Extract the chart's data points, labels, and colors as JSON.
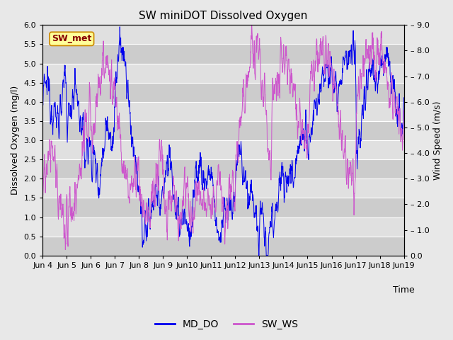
{
  "title": "SW miniDOT Dissolved Oxygen",
  "ylabel_left": "Dissolved Oxygen (mg/l)",
  "ylabel_right": "Wind Speed (m/s)",
  "xlabel": "Time",
  "ylim_left": [
    0.0,
    6.0
  ],
  "ylim_right": [
    0.0,
    9.0
  ],
  "yticks_left": [
    0.0,
    0.5,
    1.0,
    1.5,
    2.0,
    2.5,
    3.0,
    3.5,
    4.0,
    4.5,
    5.0,
    5.5,
    6.0
  ],
  "yticks_right": [
    0.0,
    1.0,
    2.0,
    3.0,
    4.0,
    5.0,
    6.0,
    7.0,
    8.0,
    9.0
  ],
  "line1_color": "#0000EE",
  "line2_color": "#CC55CC",
  "line1_label": "MD_DO",
  "line2_label": "SW_WS",
  "annotation_text": "SW_met",
  "annotation_bg": "#FFFF99",
  "annotation_border": "#CC8800",
  "annotation_fg": "#880000",
  "fig_bg": "#E8E8E8",
  "plot_bg": "#D8D8D8",
  "band_dark": "#CCCCCC",
  "band_light": "#E0E0E0",
  "title_fontsize": 11,
  "label_fontsize": 9,
  "tick_fontsize": 8,
  "legend_fontsize": 10,
  "n_points": 1500,
  "linewidth": 0.7
}
